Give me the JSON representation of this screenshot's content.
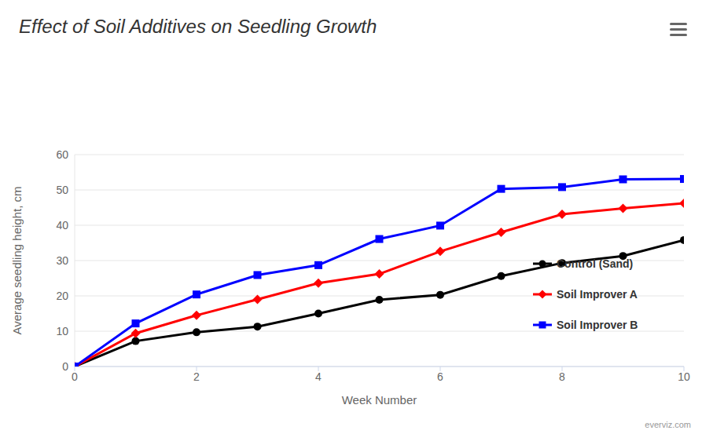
{
  "chart_data": {
    "type": "line",
    "title": "Effect of Soil Additives on Seedling Growth",
    "x_label": "Week Number",
    "y_label": "Average seedling height, cm",
    "credits": "everviz.com",
    "x": [
      0,
      1,
      2,
      3,
      4,
      5,
      6,
      7,
      8,
      9,
      10
    ],
    "series": [
      {
        "name": "Control (Sand)",
        "color": "#000000",
        "marker": "circle",
        "values": [
          0,
          7.2,
          9.7,
          11.3,
          15,
          18.9,
          20.3,
          25.6,
          29.3,
          31.3,
          35.8
        ]
      },
      {
        "name": "Soil Improver A",
        "color": "#ff0000",
        "marker": "diamond",
        "values": [
          0,
          9.4,
          14.5,
          19,
          23.6,
          26.2,
          32.6,
          38,
          43.1,
          44.8,
          46.2
        ]
      },
      {
        "name": "Soil Improver B",
        "color": "#0000ff",
        "marker": "square",
        "values": [
          0,
          12.2,
          20.4,
          25.9,
          28.7,
          36.1,
          39.9,
          50.3,
          50.8,
          53,
          53.1
        ]
      }
    ],
    "xlim": [
      0,
      10
    ],
    "xticks": [
      0,
      2,
      4,
      6,
      8,
      10
    ],
    "ylim": [
      0,
      60
    ],
    "yticks": [
      0,
      10,
      20,
      30,
      40,
      50,
      60
    ],
    "grid": true,
    "legend": "right"
  }
}
